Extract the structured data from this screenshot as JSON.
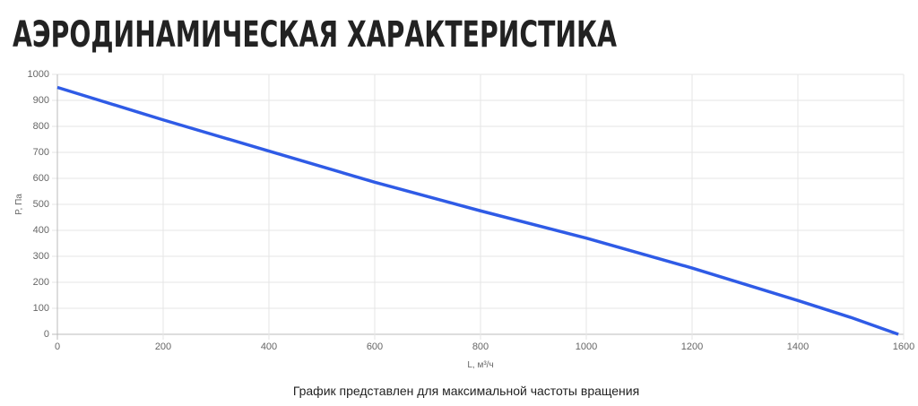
{
  "chart_data": {
    "type": "line",
    "title": "АЭРОДИНАМИЧЕСКАЯ ХАРАКТЕРИСТИКА",
    "x_label": "L, м³/ч",
    "y_label": "P, Па",
    "note": "График представлен для максимальной частоты вращения",
    "x": [
      0,
      200,
      400,
      600,
      800,
      1000,
      1200,
      1400,
      1500,
      1590
    ],
    "series": [
      {
        "color": "#2f5be6",
        "values": [
          950,
          825,
          705,
          585,
          475,
          370,
          255,
          130,
          65,
          0
        ]
      }
    ],
    "xlim": [
      0,
      1600
    ],
    "xticks": [
      0,
      200,
      400,
      600,
      800,
      1000,
      1200,
      1400,
      1600
    ],
    "ylim": [
      0,
      1000
    ],
    "yticks": [
      0,
      100,
      200,
      300,
      400,
      500,
      600,
      700,
      800,
      900,
      1000
    ],
    "grid": true
  }
}
